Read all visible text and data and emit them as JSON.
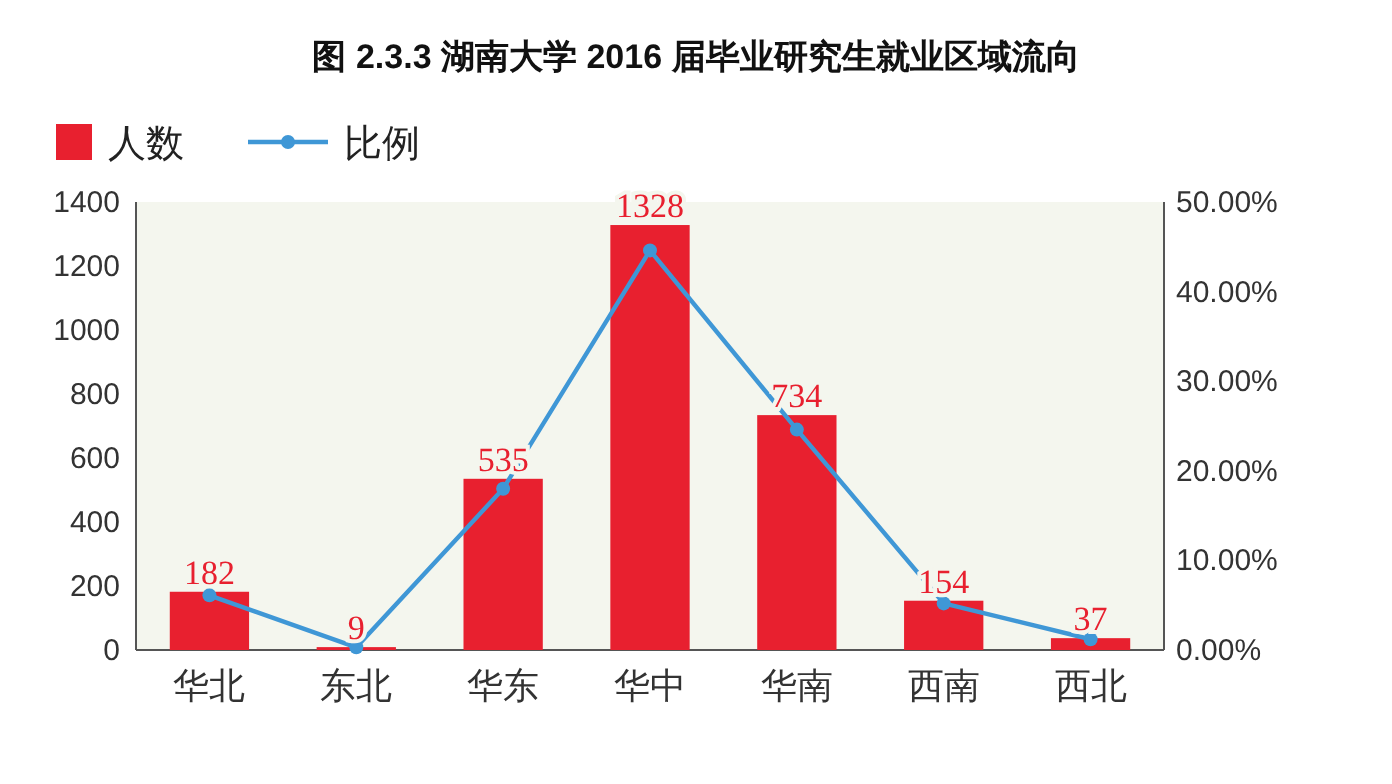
{
  "chart_data": {
    "type": "bar",
    "title": "图 2.3.3 湖南大学 2016 届毕业研究生就业区域流向",
    "categories": [
      "华北",
      "东北",
      "华东",
      "华中",
      "华南",
      "西南",
      "西北"
    ],
    "series": [
      {
        "name": "人数",
        "color": "#e8202f",
        "values": [
          182,
          9,
          535,
          1328,
          734,
          154,
          37
        ],
        "data_labels": true
      },
      {
        "name": "比例",
        "type": "line",
        "axis": "y2",
        "color": "#3f97d6",
        "marker": "circle",
        "values": [
          6.1,
          0.3,
          18.0,
          44.6,
          24.6,
          5.2,
          1.2
        ]
      }
    ],
    "ylim": [
      0,
      1400
    ],
    "yticks": [
      0,
      200,
      400,
      600,
      800,
      1000,
      1200,
      1400
    ],
    "y2lim": [
      0,
      50
    ],
    "y2ticks": [
      {
        "value": 0,
        "label": "0.00%"
      },
      {
        "value": 10,
        "label": "10.00%"
      },
      {
        "value": 20,
        "label": "20.00%"
      },
      {
        "value": 30,
        "label": "30.00%"
      },
      {
        "value": 40,
        "label": "40.00%"
      },
      {
        "value": 50,
        "label": "50.00%"
      }
    ],
    "grid": false,
    "legend": "top left"
  }
}
